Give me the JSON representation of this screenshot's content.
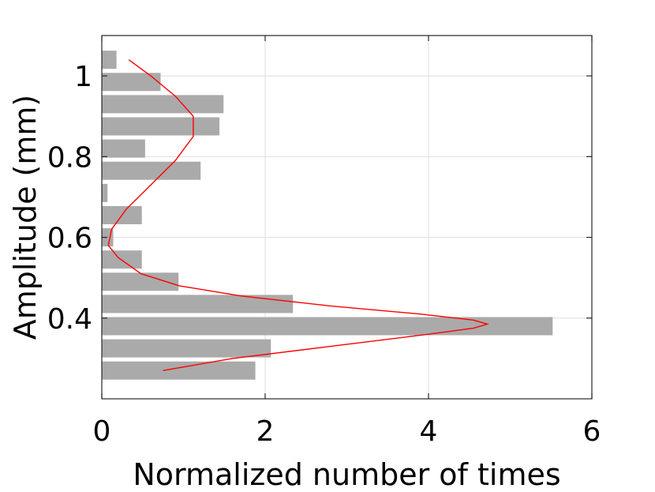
{
  "chart_data": {
    "type": "bar",
    "orientation": "horizontal",
    "xlabel": "Normalized number of times",
    "ylabel": "Amplitude (mm)",
    "xlim": [
      0,
      6
    ],
    "ylim": [
      0.2,
      1.1
    ],
    "xticks": [
      0,
      2,
      4,
      6
    ],
    "xtick_labels": [
      "0",
      "2",
      "4",
      "6"
    ],
    "yticks": [
      0.4,
      0.6,
      0.8,
      1.0
    ],
    "ytick_labels": [
      "0.4",
      "0.6",
      "0.8",
      "1"
    ],
    "grid": true,
    "bar_color": "#aaaaaa",
    "curve_color": "#ff0000",
    "bin_height": 0.045,
    "bars": [
      {
        "y": 0.27,
        "value": 1.88
      },
      {
        "y": 0.325,
        "value": 2.07
      },
      {
        "y": 0.38,
        "value": 5.52
      },
      {
        "y": 0.435,
        "value": 2.34
      },
      {
        "y": 0.49,
        "value": 0.94
      },
      {
        "y": 0.545,
        "value": 0.49
      },
      {
        "y": 0.6,
        "value": 0.14
      },
      {
        "y": 0.655,
        "value": 0.49
      },
      {
        "y": 0.71,
        "value": 0.07
      },
      {
        "y": 0.765,
        "value": 1.21
      },
      {
        "y": 0.82,
        "value": 0.53
      },
      {
        "y": 0.875,
        "value": 1.44
      },
      {
        "y": 0.93,
        "value": 1.49
      },
      {
        "y": 0.985,
        "value": 0.72
      },
      {
        "y": 1.04,
        "value": 0.18
      }
    ],
    "fit_curve": [
      {
        "x": 0.75,
        "y": 0.27
      },
      {
        "x": 1.6,
        "y": 0.3
      },
      {
        "x": 2.8,
        "y": 0.33
      },
      {
        "x": 4.0,
        "y": 0.36
      },
      {
        "x": 4.55,
        "y": 0.375
      },
      {
        "x": 4.72,
        "y": 0.385
      },
      {
        "x": 4.55,
        "y": 0.395
      },
      {
        "x": 3.9,
        "y": 0.41
      },
      {
        "x": 2.8,
        "y": 0.43
      },
      {
        "x": 1.7,
        "y": 0.455
      },
      {
        "x": 0.95,
        "y": 0.48
      },
      {
        "x": 0.48,
        "y": 0.51
      },
      {
        "x": 0.2,
        "y": 0.55
      },
      {
        "x": 0.08,
        "y": 0.58
      },
      {
        "x": 0.12,
        "y": 0.62
      },
      {
        "x": 0.3,
        "y": 0.67
      },
      {
        "x": 0.6,
        "y": 0.73
      },
      {
        "x": 0.9,
        "y": 0.79
      },
      {
        "x": 1.12,
        "y": 0.85
      },
      {
        "x": 1.12,
        "y": 0.9
      },
      {
        "x": 0.9,
        "y": 0.95
      },
      {
        "x": 0.6,
        "y": 1.0
      },
      {
        "x": 0.33,
        "y": 1.04
      }
    ]
  }
}
